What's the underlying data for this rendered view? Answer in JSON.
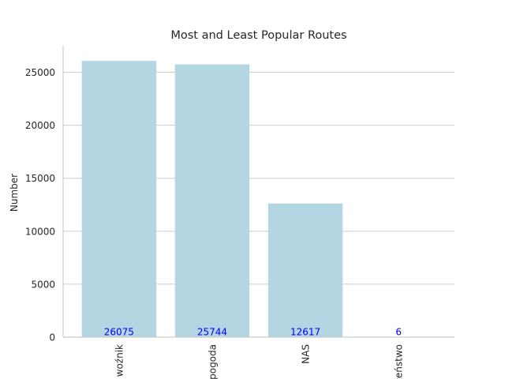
{
  "chart_data": {
    "type": "bar",
    "title": "Most and Least Popular Routes",
    "xlabel": "",
    "ylabel": "Number",
    "categories": [
      "woźnik",
      "pogoda",
      "NAS",
      "zeństwo"
    ],
    "values": [
      26075,
      25744,
      12617,
      6
    ],
    "data_labels": [
      "26075",
      "25744",
      "12617",
      "6"
    ],
    "ylim": [
      0,
      27500
    ],
    "yticks": [
      0,
      5000,
      10000,
      15000,
      20000,
      25000
    ],
    "ytick_labels": [
      "0",
      "5000",
      "10000",
      "15000",
      "20000",
      "25000"
    ],
    "grid": "horizontal",
    "colors": {
      "bar": "#b3d6e2",
      "data_label": "#0000ff",
      "grid": "#cccccc",
      "axis": "#cccccc",
      "text": "#262626"
    }
  }
}
